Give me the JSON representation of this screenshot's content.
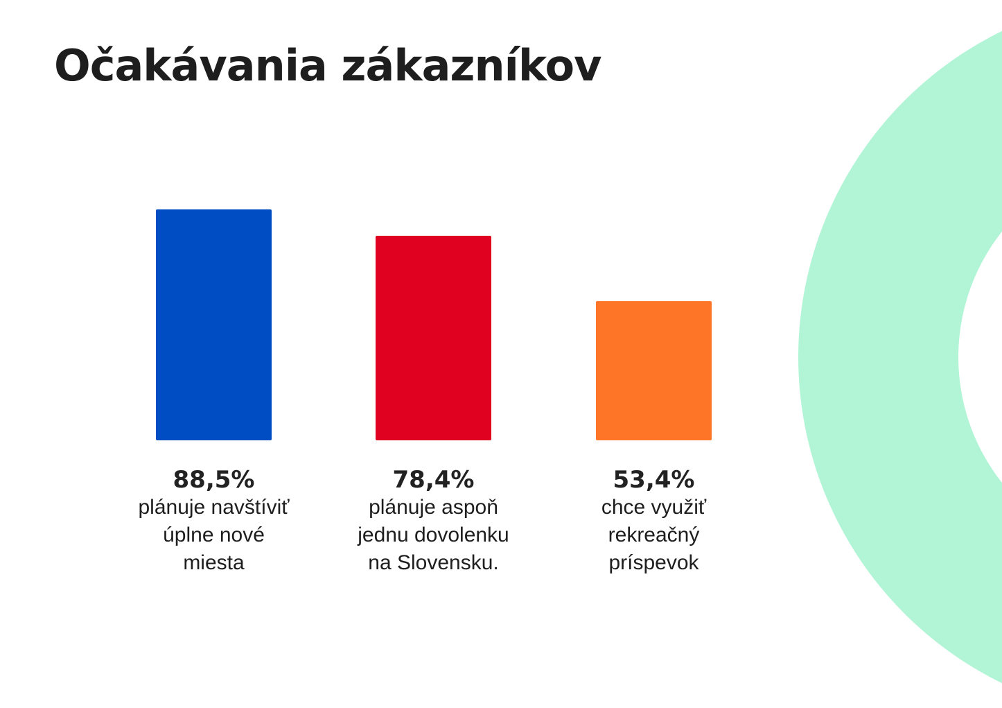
{
  "chart_data": {
    "type": "bar",
    "title": "Očakávania zákazníkov",
    "categories": [
      "plánuje navštíviť úplne nové miesta",
      "plánuje aspoň jednu dovolenku na Slovensku.",
      "chce využiť rekreačný príspevok"
    ],
    "values": [
      88.5,
      78.4,
      53.4
    ],
    "value_labels": [
      "88,5%",
      "78,4%",
      "53,4%"
    ],
    "desc_lines": [
      [
        "plánuje navštíviť",
        "úplne nové",
        "miesta"
      ],
      [
        "plánuje aspoň",
        "jednu dovolenku",
        "na Slovensku."
      ],
      [
        "chce využiť",
        "rekreačný",
        "príspevok"
      ]
    ],
    "colors": [
      "#004cc2",
      "#e0001f",
      "#ff7527"
    ],
    "ylim": [
      0,
      100
    ],
    "grid": false,
    "xlabel": "",
    "ylabel": ""
  },
  "decoration_color": "#b2f5d6"
}
